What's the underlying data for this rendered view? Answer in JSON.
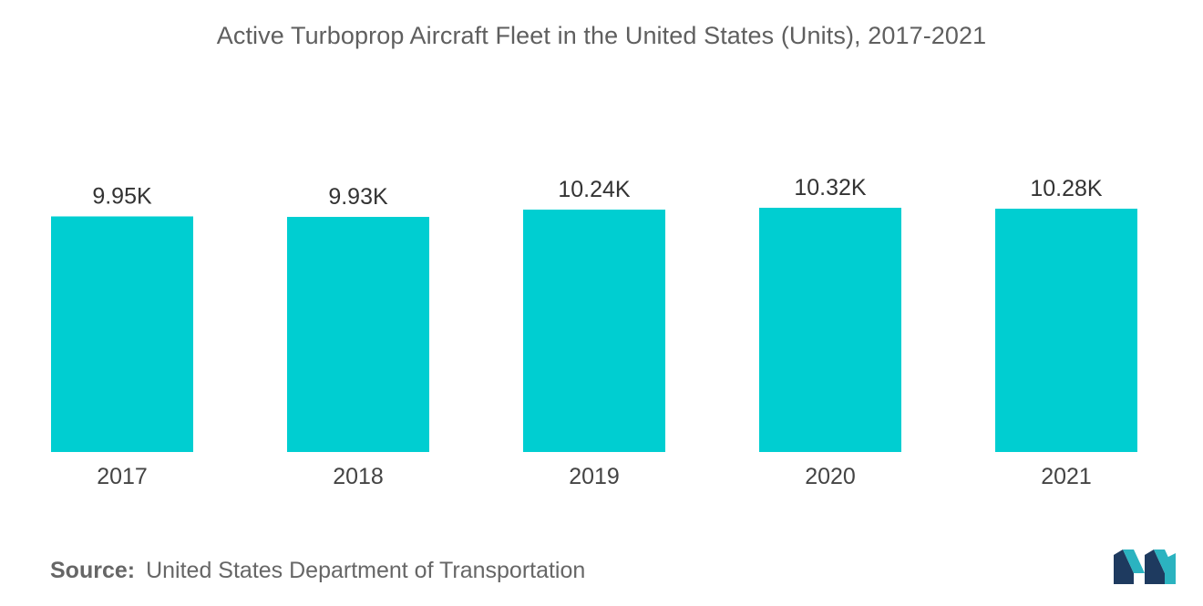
{
  "chart_data": {
    "type": "bar",
    "title": "Active Turboprop Aircraft Fleet in the United States (Units), 2017-2021",
    "categories": [
      "2017",
      "2018",
      "2019",
      "2020",
      "2021"
    ],
    "values": [
      9950,
      9930,
      10240,
      10320,
      10280
    ],
    "data_labels": [
      "9.95K",
      "9.93K",
      "10.24K",
      "10.32K",
      "10.28K"
    ],
    "bar_color": "#00ced1",
    "grid": false,
    "legend": "none"
  },
  "source": {
    "label": "Source:",
    "text": "United States Department of Transportation"
  },
  "logo": {
    "icon": "mordor-intelligence-logo-icon",
    "colors": [
      "#1e3a5f",
      "#2bb3c0"
    ]
  }
}
